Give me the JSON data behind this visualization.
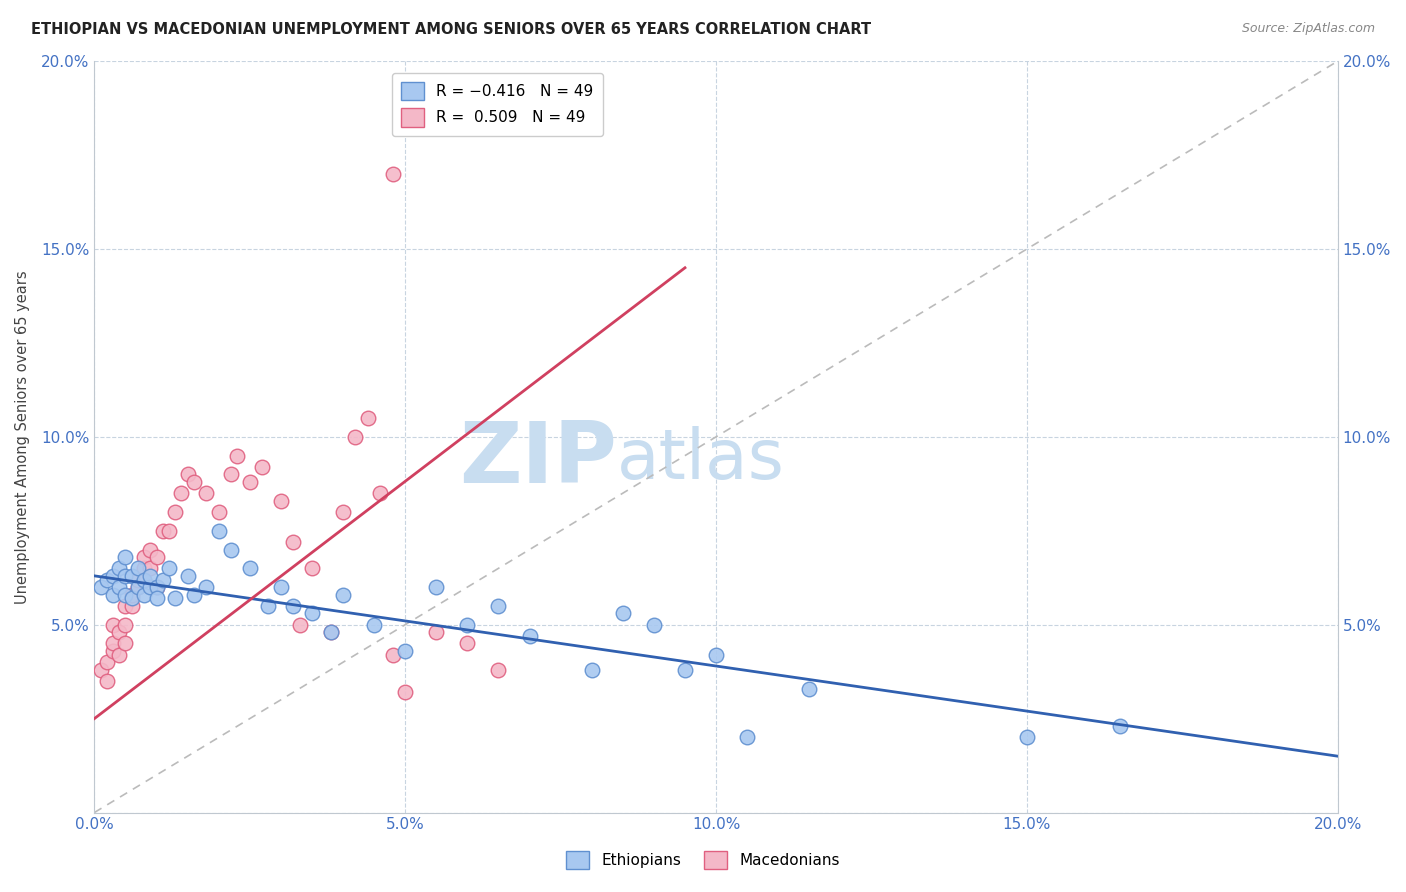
{
  "title": "ETHIOPIAN VS MACEDONIAN UNEMPLOYMENT AMONG SENIORS OVER 65 YEARS CORRELATION CHART",
  "source": "Source: ZipAtlas.com",
  "ylabel": "Unemployment Among Seniors over 65 years",
  "xlim": [
    0,
    0.2
  ],
  "ylim": [
    0,
    0.2
  ],
  "xticks": [
    0.0,
    0.05,
    0.1,
    0.15,
    0.2
  ],
  "yticks": [
    0.0,
    0.05,
    0.1,
    0.15,
    0.2
  ],
  "xticklabels": [
    "0.0%",
    "5.0%",
    "10.0%",
    "15.0%",
    "20.0%"
  ],
  "yticklabels_left": [
    "",
    "5.0%",
    "10.0%",
    "15.0%",
    "20.0%"
  ],
  "yticklabels_right": [
    "",
    "5.0%",
    "10.0%",
    "15.0%",
    "20.0%"
  ],
  "ethiopian_color": "#a8c8f0",
  "macedonian_color": "#f4b8c8",
  "ethiopian_edge": "#6090d0",
  "macedonian_edge": "#e06080",
  "trend_ethiopian_color": "#3060b0",
  "trend_macedonian_color": "#d04060",
  "diagonal_color": "#bbbbbb",
  "watermark_zip": "ZIP",
  "watermark_atlas": "atlas",
  "watermark_color_zip": "#c8ddf0",
  "watermark_color_atlas": "#c8ddf0",
  "ethiopian_x": [
    0.001,
    0.002,
    0.003,
    0.003,
    0.004,
    0.004,
    0.005,
    0.005,
    0.005,
    0.006,
    0.006,
    0.007,
    0.007,
    0.008,
    0.008,
    0.009,
    0.009,
    0.01,
    0.01,
    0.011,
    0.012,
    0.013,
    0.015,
    0.016,
    0.018,
    0.02,
    0.022,
    0.025,
    0.028,
    0.03,
    0.032,
    0.035,
    0.038,
    0.04,
    0.045,
    0.05,
    0.055,
    0.06,
    0.065,
    0.07,
    0.08,
    0.085,
    0.09,
    0.095,
    0.1,
    0.105,
    0.115,
    0.15,
    0.165
  ],
  "ethiopian_y": [
    0.06,
    0.062,
    0.063,
    0.058,
    0.06,
    0.065,
    0.058,
    0.063,
    0.068,
    0.057,
    0.063,
    0.06,
    0.065,
    0.058,
    0.062,
    0.06,
    0.063,
    0.06,
    0.057,
    0.062,
    0.065,
    0.057,
    0.063,
    0.058,
    0.06,
    0.075,
    0.07,
    0.065,
    0.055,
    0.06,
    0.055,
    0.053,
    0.048,
    0.058,
    0.05,
    0.043,
    0.06,
    0.05,
    0.055,
    0.047,
    0.038,
    0.053,
    0.05,
    0.038,
    0.042,
    0.02,
    0.033,
    0.02,
    0.023
  ],
  "macedonian_x": [
    0.001,
    0.002,
    0.002,
    0.003,
    0.003,
    0.003,
    0.004,
    0.004,
    0.005,
    0.005,
    0.005,
    0.006,
    0.006,
    0.007,
    0.007,
    0.008,
    0.008,
    0.008,
    0.009,
    0.009,
    0.01,
    0.01,
    0.011,
    0.012,
    0.013,
    0.014,
    0.015,
    0.016,
    0.018,
    0.02,
    0.022,
    0.023,
    0.025,
    0.027,
    0.03,
    0.032,
    0.033,
    0.035,
    0.038,
    0.04,
    0.042,
    0.044,
    0.046,
    0.048,
    0.05,
    0.055,
    0.06,
    0.065,
    0.048
  ],
  "macedonian_y": [
    0.038,
    0.04,
    0.035,
    0.043,
    0.05,
    0.045,
    0.048,
    0.042,
    0.05,
    0.055,
    0.045,
    0.055,
    0.058,
    0.06,
    0.062,
    0.062,
    0.065,
    0.068,
    0.065,
    0.07,
    0.068,
    0.06,
    0.075,
    0.075,
    0.08,
    0.085,
    0.09,
    0.088,
    0.085,
    0.08,
    0.09,
    0.095,
    0.088,
    0.092,
    0.083,
    0.072,
    0.05,
    0.065,
    0.048,
    0.08,
    0.1,
    0.105,
    0.085,
    0.042,
    0.032,
    0.048,
    0.045,
    0.038,
    0.17
  ],
  "trend_eth_x0": 0.0,
  "trend_eth_y0": 0.063,
  "trend_eth_x1": 0.2,
  "trend_eth_y1": 0.015,
  "trend_mac_x0": 0.0,
  "trend_mac_y0": 0.025,
  "trend_mac_x1": 0.095,
  "trend_mac_y1": 0.145
}
